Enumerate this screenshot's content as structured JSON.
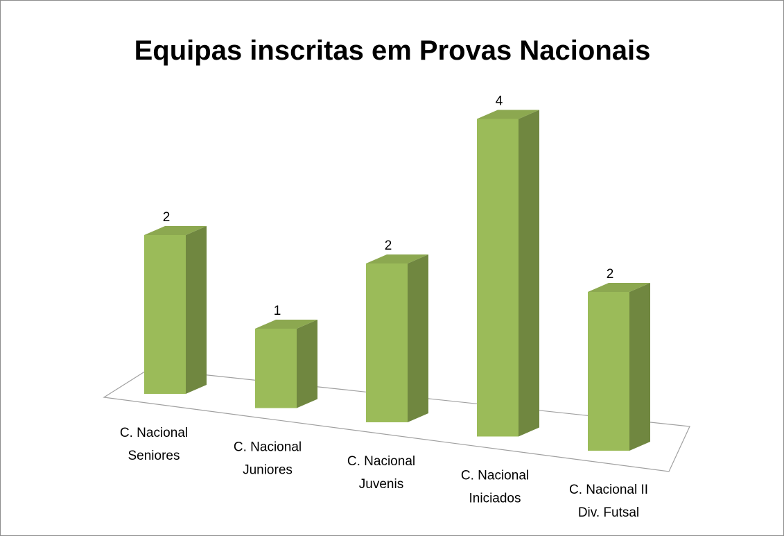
{
  "chart_data": {
    "type": "bar3d",
    "title": "Equipas inscritas em Provas Nacionais",
    "categories": [
      "C. Nacional\nSeniores",
      "C. Nacional\nJuniores",
      "C. Nacional\nJuvenis",
      "C. Nacional\nIniciados",
      "C. Nacional II\nDiv. Futsal"
    ],
    "values": [
      2,
      1,
      2,
      4,
      2
    ],
    "color": "#9bbb59"
  }
}
